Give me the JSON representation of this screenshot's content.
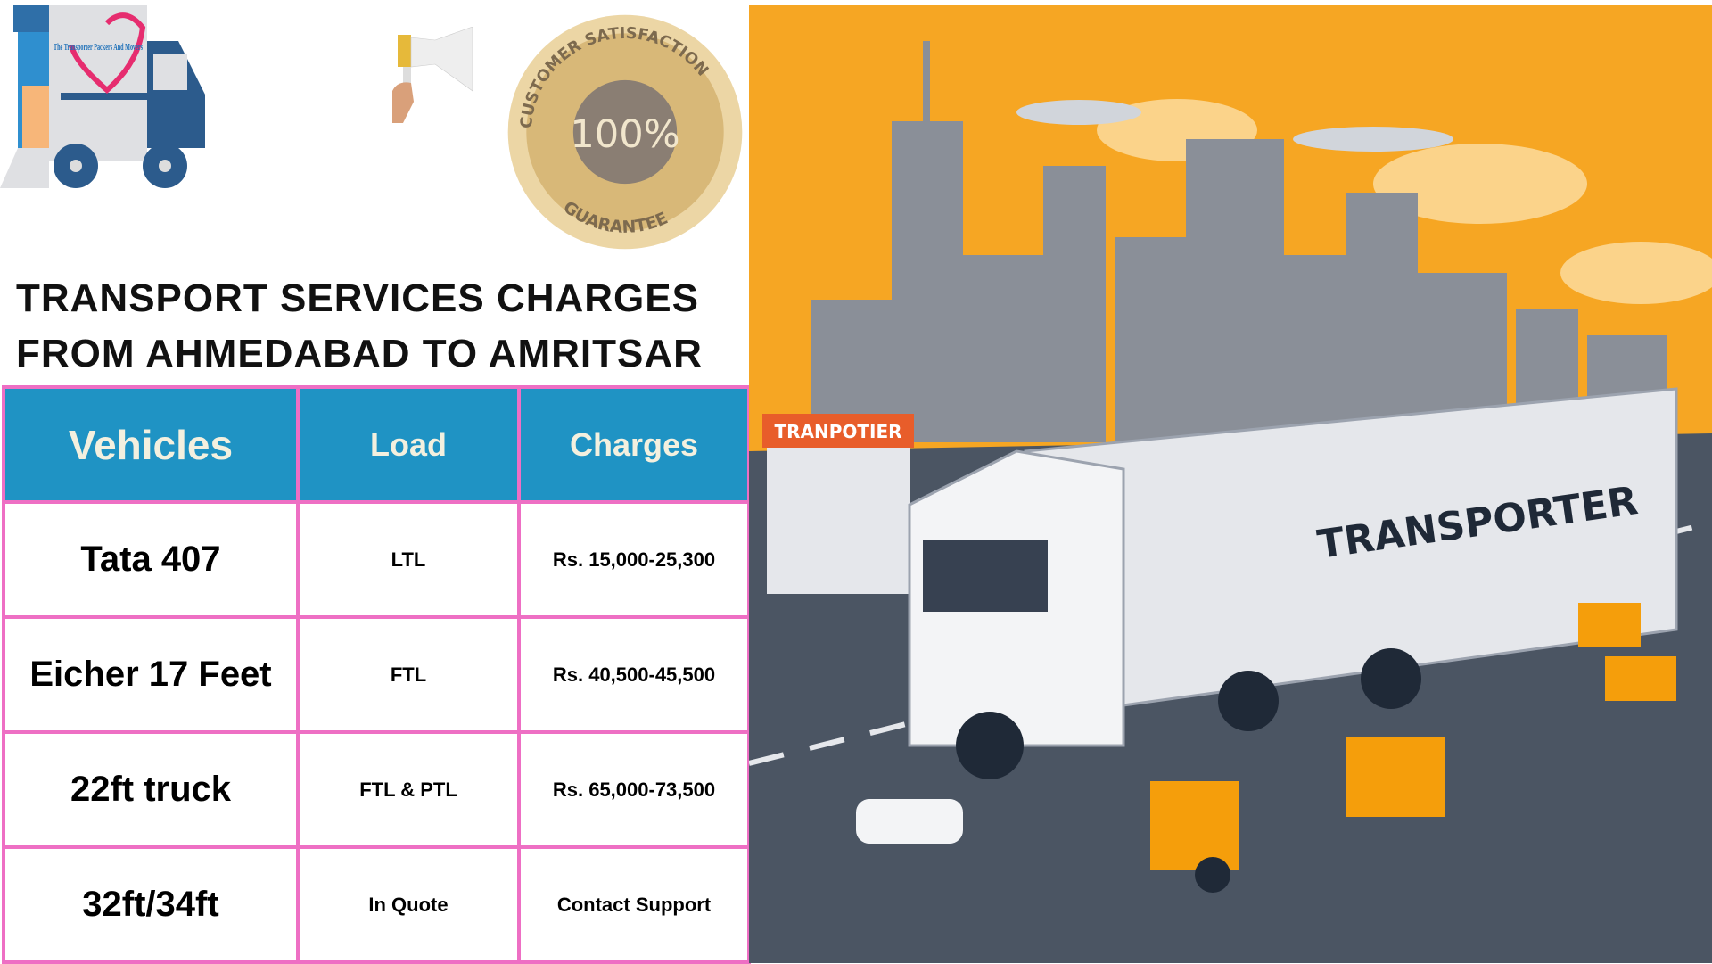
{
  "logo": {
    "text": "The Transporter Packers And Movers"
  },
  "seal": {
    "top": "CUSTOMER SATISFACTION",
    "center": "100%",
    "bottom": "GUARANTEE"
  },
  "title": {
    "line1": "TRANSPORT SERVICES CHARGES",
    "line2": "FROM AHMEDABAD TO AMRITSAR"
  },
  "table": {
    "headers": [
      "Vehicles",
      "Load",
      "Charges"
    ],
    "rows": [
      [
        "Tata 407",
        "LTL",
        "Rs. 15,000-25,300"
      ],
      [
        "Eicher 17 Feet",
        "FTL",
        "Rs. 40,500-45,500"
      ],
      [
        "22ft truck",
        "FTL & PTL",
        "Rs. 65,000-73,500"
      ],
      [
        "32ft/34ft",
        "In Quote",
        "Contact Support"
      ]
    ]
  },
  "illustration": {
    "truck_label": "TRANSPORTER",
    "shop_sign": "TRANPOTIER"
  },
  "colors": {
    "header_bg": "#1f93c4",
    "border": "#ee6fc4",
    "sky": "#f6a623",
    "road": "#4b5563"
  }
}
